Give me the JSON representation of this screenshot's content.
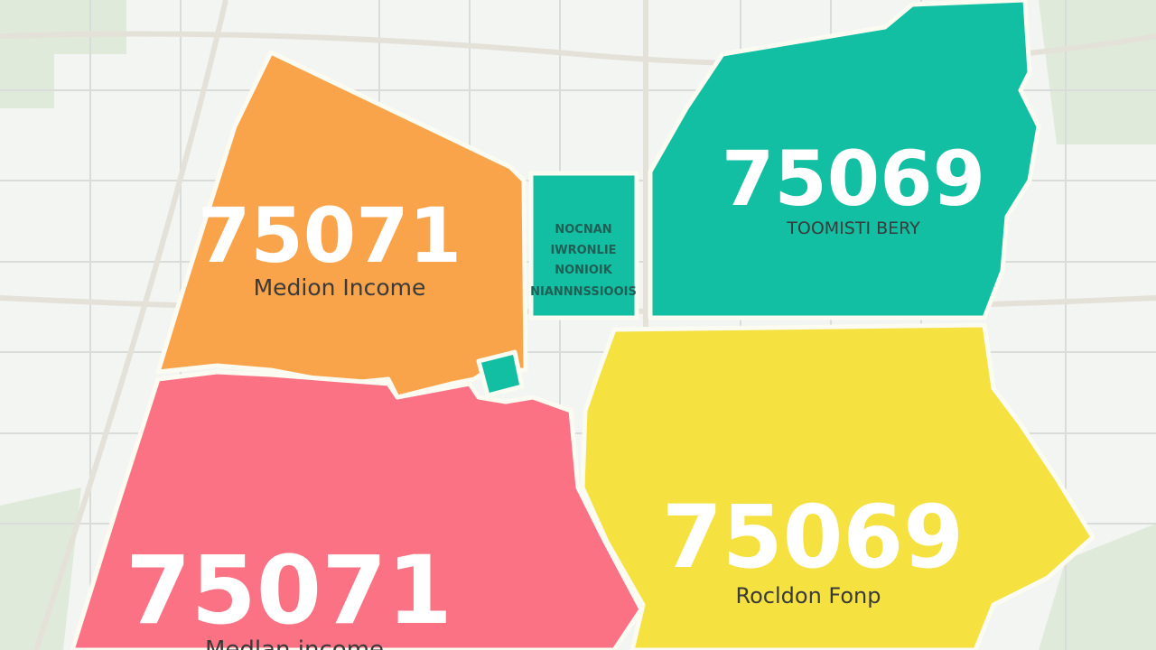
{
  "regions": [
    {
      "zip": "75071",
      "label": "Medion Income"
    },
    {
      "zip": "75069",
      "label": "TOOMISTI BERY"
    },
    {
      "zip": "75069",
      "label": "Rocldon Fonp"
    },
    {
      "zip": "75071",
      "label": "Medlan income"
    }
  ],
  "center_labels": [
    "NOCNAN",
    "IWRONLIE",
    "NONIOIK",
    "NIANNNSSIOOIS"
  ]
}
